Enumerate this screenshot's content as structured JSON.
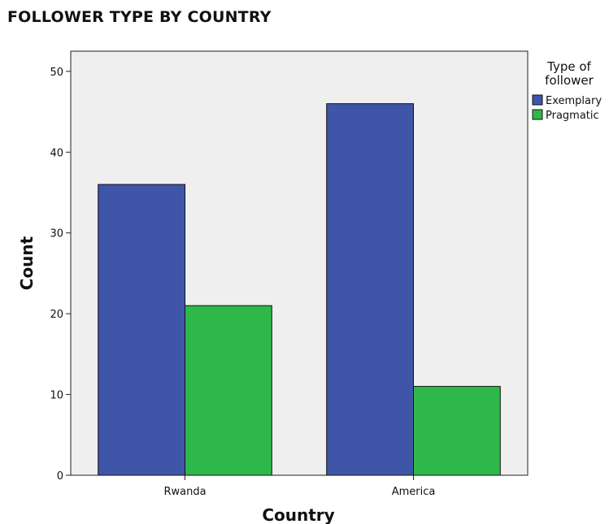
{
  "chart_data": {
    "type": "bar",
    "title": "FOLLOWER TYPE BY COUNTRY",
    "xlabel": "Country",
    "ylabel": "Count",
    "categories": [
      "Rwanda",
      "America"
    ],
    "series": [
      {
        "name": "Exemplary",
        "values": [
          36,
          46
        ],
        "color": "#3f55a8"
      },
      {
        "name": "Pragmatic",
        "values": [
          21,
          11
        ],
        "color": "#2eb84a"
      }
    ],
    "ylim": [
      0,
      52.5
    ],
    "yticks": [
      0,
      10,
      20,
      30,
      40,
      50
    ],
    "legend": {
      "title_lines": [
        "Type of",
        "follower"
      ],
      "position": "right"
    },
    "grid": false,
    "plot_background": "#efefef"
  }
}
